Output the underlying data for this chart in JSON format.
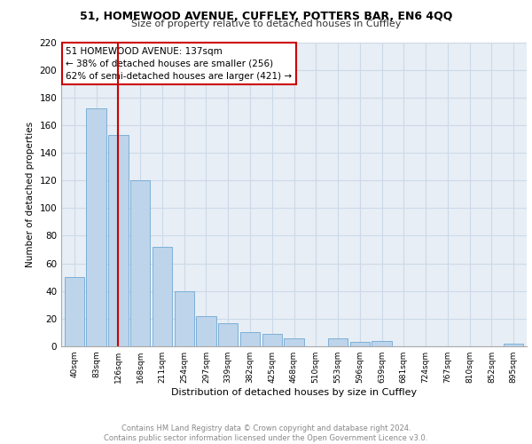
{
  "title1": "51, HOMEWOOD AVENUE, CUFFLEY, POTTERS BAR, EN6 4QQ",
  "title2": "Size of property relative to detached houses in Cuffley",
  "xlabel": "Distribution of detached houses by size in Cuffley",
  "ylabel": "Number of detached properties",
  "categories": [
    "40sqm",
    "83sqm",
    "126sqm",
    "168sqm",
    "211sqm",
    "254sqm",
    "297sqm",
    "339sqm",
    "382sqm",
    "425sqm",
    "468sqm",
    "510sqm",
    "553sqm",
    "596sqm",
    "639sqm",
    "681sqm",
    "724sqm",
    "767sqm",
    "810sqm",
    "852sqm",
    "895sqm"
  ],
  "values": [
    50,
    172,
    153,
    120,
    72,
    40,
    22,
    17,
    10,
    9,
    6,
    0,
    6,
    3,
    4,
    0,
    0,
    0,
    0,
    0,
    2
  ],
  "bar_color": "#bdd4ea",
  "bar_edgecolor": "#6fa8d4",
  "annotation_text": "51 HOMEWOOD AVENUE: 137sqm\n← 38% of detached houses are smaller (256)\n62% of semi-detached houses are larger (421) →",
  "vline_color": "#cc0000",
  "box_edgecolor": "#cc0000",
  "footer": "Contains HM Land Registry data © Crown copyright and database right 2024.\nContains public sector information licensed under the Open Government Licence v3.0.",
  "ylim": [
    0,
    220
  ],
  "yticks": [
    0,
    20,
    40,
    60,
    80,
    100,
    120,
    140,
    160,
    180,
    200,
    220
  ],
  "grid_color": "#ccd9e8",
  "background_color": "#e8eef5"
}
